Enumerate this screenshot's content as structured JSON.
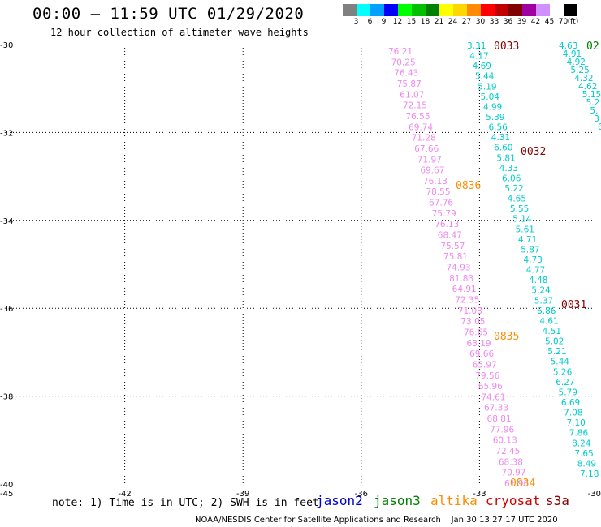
{
  "title": "00:00 – 11:59 UTC 01/29/2020",
  "subtitle": "12 hour collection of altimeter wave heights",
  "legend": {
    "unit": "(ft)",
    "bins": [
      {
        "label": "3",
        "color": "#808080"
      },
      {
        "label": "6",
        "color": "#00ffff"
      },
      {
        "label": "9",
        "color": "#00a0ff"
      },
      {
        "label": "12",
        "color": "#0000ff"
      },
      {
        "label": "15",
        "color": "#00ff00"
      },
      {
        "label": "18",
        "color": "#00c000"
      },
      {
        "label": "21",
        "color": "#008000"
      },
      {
        "label": "24",
        "color": "#ffff00"
      },
      {
        "label": "27",
        "color": "#ffd700"
      },
      {
        "label": "30",
        "color": "#ff8c00"
      },
      {
        "label": "33",
        "color": "#ff0000"
      },
      {
        "label": "36",
        "color": "#c00000"
      },
      {
        "label": "39",
        "color": "#800000"
      },
      {
        "label": "42",
        "color": "#a000a0"
      },
      {
        "label": "45",
        "color": "#d090ff"
      },
      {
        "label": "70",
        "color": "#ffffff"
      },
      {
        "label": "",
        "color": "#000000"
      }
    ]
  },
  "axes": {
    "lat_labels": [
      "-30",
      "-32",
      "-34",
      "-36",
      "-38",
      "-40"
    ],
    "lon_labels": [
      "-45",
      "-42",
      "-39",
      "-36",
      "-33",
      "-30"
    ]
  },
  "tracks": [
    {
      "name": "pink-track",
      "color": "#ee88ee",
      "values": [
        "76.21",
        "70.25",
        "76.43",
        "75.87",
        "61.07",
        "72.15",
        "76.55",
        "69.74",
        "71.28",
        "67.66",
        "71.97",
        "69.67",
        "76.13",
        "78.55",
        "67.76",
        "75.79",
        "76.13",
        "68.47",
        "75.57",
        "75.81",
        "74.93",
        "81.83",
        "64.91",
        "72.35",
        "71.08",
        "73.05",
        "76.65",
        "63.19",
        "69.66",
        "65.97",
        "79.56",
        "65.96",
        "74.61",
        "67.33",
        "68.81",
        "77.96",
        "60.13",
        "72.45",
        "68.38",
        "70.97",
        "61.96"
      ]
    },
    {
      "name": "cyan-track-a",
      "color": "#00cccc",
      "values": [
        "3.31",
        "4.17",
        "4.69",
        "5.44",
        "5.19",
        "5.04",
        "4.99",
        "5.39",
        "6.56",
        "4.31",
        "6.60",
        "5.81",
        "4.33",
        "6.06",
        "5.22",
        "4.65",
        "5.55",
        "5.14",
        "5.61",
        "4.71",
        "5.87",
        "4.73",
        "4.77",
        "4.48",
        "5.24",
        "5.37",
        "6.86",
        "4.61",
        "4.51",
        "5.02",
        "5.21",
        "5.44",
        "5.26",
        "6.27",
        "5.79",
        "6.69",
        "7.08",
        "7.10",
        "7.86",
        "8.24",
        "7.65",
        "8.49",
        "7.18"
      ]
    },
    {
      "name": "cyan-track-b",
      "color": "#00cccc",
      "values": [
        "4.63",
        "4.91",
        "4.92",
        "5.25",
        "4.32",
        "4.62",
        "5.15",
        "5.2",
        "5.",
        "3",
        "6"
      ]
    }
  ],
  "time_labels": [
    {
      "text": "0033",
      "color": "#8b0000"
    },
    {
      "text": "02",
      "color": "#008000"
    },
    {
      "text": "0032",
      "color": "#8b0000"
    },
    {
      "text": "0836",
      "color": "#ff8c00"
    },
    {
      "text": "0031",
      "color": "#8b0000"
    },
    {
      "text": "0835",
      "color": "#ff8c00"
    },
    {
      "text": "0834",
      "color": "#ff8c00"
    }
  ],
  "note": "note: 1) Time is in UTC; 2) SWH is in feet",
  "satellites": [
    {
      "name": "jason2",
      "color": "#0000cc"
    },
    {
      "name": "jason3",
      "color": "#008000"
    },
    {
      "name": "altika",
      "color": "#ff8c00"
    },
    {
      "name": "cryosat",
      "color": "#cc0000"
    },
    {
      "name": "s3a",
      "color": "#8b0000"
    }
  ],
  "footer_credit": "NOAA/NESDIS Center for Satellite Applications and Research",
  "footer_time": "Jan 30 13:27:17 UTC 2020"
}
